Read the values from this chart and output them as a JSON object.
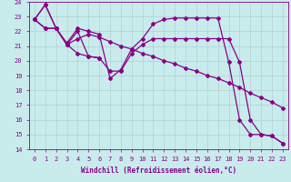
{
  "background_color": "#c8ecec",
  "grid_color": "#b0d0d0",
  "line_color": "#880088",
  "marker": "D",
  "marker_size": 2,
  "line_width": 0.9,
  "xlabel": "Windchill (Refroidissement éolien,°C)",
  "xlim": [
    -0.5,
    23.5
  ],
  "ylim": [
    14,
    24
  ],
  "yticks": [
    14,
    15,
    16,
    17,
    18,
    19,
    20,
    21,
    22,
    23,
    24
  ],
  "xticks": [
    0,
    1,
    2,
    3,
    4,
    5,
    6,
    7,
    8,
    9,
    10,
    11,
    12,
    13,
    14,
    15,
    16,
    17,
    18,
    19,
    20,
    21,
    22,
    23
  ],
  "lines": [
    {
      "x": [
        0,
        1,
        2,
        3,
        4,
        5,
        6,
        7,
        8,
        9,
        10,
        11,
        12,
        13,
        14,
        15,
        16,
        17,
        18,
        19,
        20,
        21,
        22,
        23
      ],
      "y": [
        22.8,
        23.8,
        22.2,
        21.1,
        21.5,
        21.8,
        21.6,
        21.3,
        21.0,
        20.8,
        20.5,
        20.3,
        20.0,
        19.8,
        19.5,
        19.3,
        19.0,
        18.8,
        18.5,
        18.2,
        17.8,
        17.5,
        17.2,
        16.8
      ]
    },
    {
      "x": [
        0,
        1,
        2,
        3,
        4,
        5,
        6,
        7,
        8,
        9,
        10,
        11,
        12,
        13,
        14,
        15,
        16,
        17,
        18,
        19,
        20,
        21,
        22,
        23
      ],
      "y": [
        22.8,
        23.8,
        22.2,
        21.2,
        22.2,
        22.0,
        21.8,
        18.8,
        19.4,
        20.8,
        21.5,
        22.5,
        22.8,
        22.9,
        22.9,
        22.9,
        22.9,
        22.9,
        19.9,
        16.0,
        15.0,
        15.0,
        14.9,
        14.4
      ]
    },
    {
      "x": [
        0,
        1,
        2,
        3,
        4,
        5,
        6,
        7,
        8,
        9,
        10,
        11,
        12,
        13,
        14,
        15,
        16,
        17,
        18,
        19,
        20,
        21,
        22,
        23
      ],
      "y": [
        22.8,
        22.2,
        22.2,
        21.1,
        22.0,
        20.3,
        20.2,
        19.3,
        19.3,
        20.5,
        21.1,
        21.5,
        21.5,
        21.5,
        21.5,
        21.5,
        21.5,
        21.5,
        21.5,
        19.9,
        16.0,
        15.0,
        14.9,
        14.4
      ]
    },
    {
      "x": [
        0,
        1,
        2,
        3,
        4,
        5,
        6
      ],
      "y": [
        22.8,
        22.2,
        22.2,
        21.1,
        20.5,
        20.3,
        20.2
      ]
    }
  ]
}
